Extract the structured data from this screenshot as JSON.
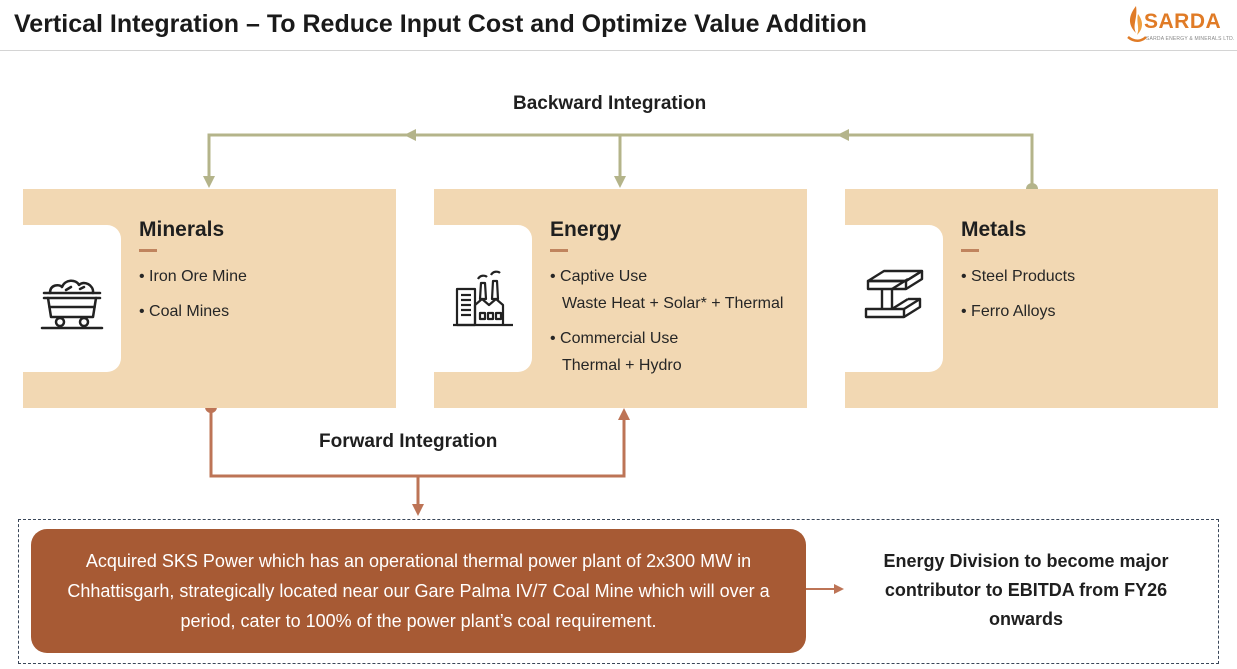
{
  "header": {
    "title": "Vertical Integration – To Reduce Input Cost and Optimize Value Addition",
    "logo_text": "SARDA",
    "logo_subtext": "SARDA ENERGY & MINERALS LTD."
  },
  "backward_integration": {
    "label": "Backward Integration"
  },
  "forward_integration": {
    "label": "Forward Integration"
  },
  "cards": [
    {
      "title": "Minerals",
      "icon": "mine-cart-icon",
      "items": [
        {
          "text": "Iron Ore Mine",
          "sub": ""
        },
        {
          "text": "Coal Mines",
          "sub": ""
        }
      ]
    },
    {
      "title": "Energy",
      "icon": "factory-icon",
      "items": [
        {
          "text": "Captive Use",
          "sub": "Waste Heat + Solar* + Thermal"
        },
        {
          "text": "Commercial Use",
          "sub": "Thermal + Hydro"
        }
      ]
    },
    {
      "title": "Metals",
      "icon": "steel-beam-icon",
      "items": [
        {
          "text": "Steel Products",
          "sub": ""
        },
        {
          "text": "Ferro Alloys",
          "sub": ""
        }
      ]
    }
  ],
  "acquisition": {
    "text": "Acquired SKS Power which has an operational thermal power plant of 2x300 MW in Chhattisgarh, strategically located near our Gare Palma IV/7 Coal Mine which will over a period, cater to 100% of the power plant’s coal requirement."
  },
  "outcome": {
    "text": "Energy Division to become major contributor to EBITDA from FY26 onwards"
  },
  "colors": {
    "card_background": "#f2d8b3",
    "backward_line": "#b4b48a",
    "forward_line": "#bd7456",
    "acquisition_box": "#a75a34",
    "logo_accent": "#e07b26"
  }
}
